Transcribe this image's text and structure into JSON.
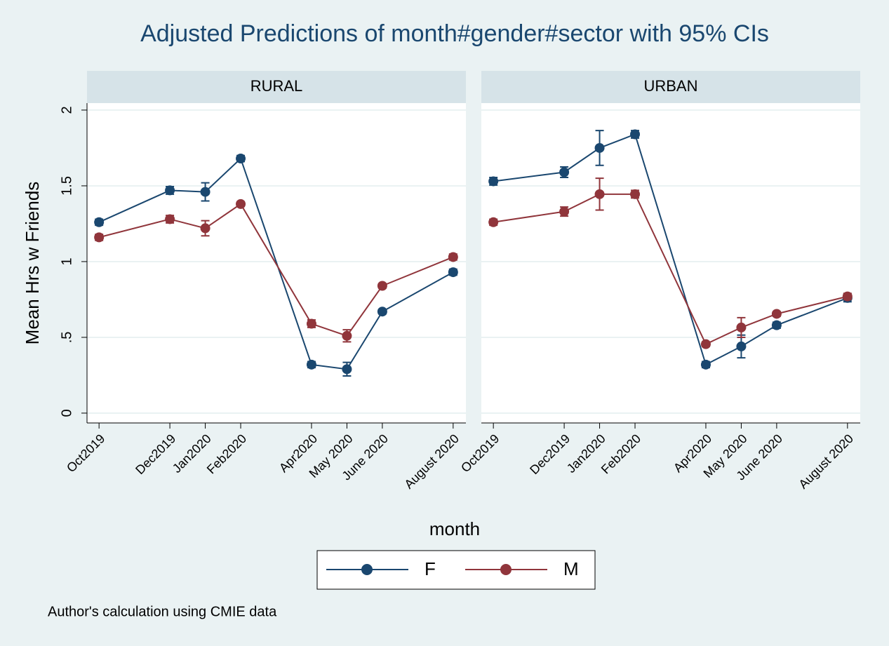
{
  "chart_data": {
    "type": "line",
    "title": "Adjusted Predictions of month#gender#sector with 95% CIs",
    "x_label": "month",
    "y_label": "Mean Hrs w Friends",
    "note": "Author's calculation using CMIE data",
    "x": [
      717,
      719,
      720,
      721,
      723,
      724,
      725,
      727
    ],
    "xlim": [
      716.66,
      727.36
    ],
    "xticks": [
      {
        "value": 717,
        "label": "Oct2019"
      },
      {
        "value": 719,
        "label": "Dec2019"
      },
      {
        "value": 720,
        "label": "Jan2020"
      },
      {
        "value": 721,
        "label": "Feb2020"
      },
      {
        "value": 723,
        "label": "Apr2020"
      },
      {
        "value": 724,
        "label": "May 2020"
      },
      {
        "value": 725,
        "label": "June 2020"
      },
      {
        "value": 727,
        "label": "August 2020"
      }
    ],
    "ylim": [
      -0.065,
      2.046
    ],
    "yticks": [
      0,
      {
        "value": 0.5,
        "label": ".5"
      },
      1,
      1.5,
      2
    ],
    "grid": true,
    "panels": [
      {
        "title": "RURAL",
        "series": [
          {
            "name": "F",
            "color": "#1a476f",
            "values": [
              1.26,
              1.47,
              1.46,
              1.68,
              0.32,
              0.29,
              0.67,
              0.93
            ],
            "errors": [
              0.02,
              0.025,
              0.06,
              0.02,
              0.02,
              0.045,
              0.015,
              0.02
            ]
          },
          {
            "name": "M",
            "color": "#90353b",
            "values": [
              1.16,
              1.28,
              1.22,
              1.38,
              0.59,
              0.51,
              0.84,
              1.03
            ],
            "errors": [
              0.02,
              0.025,
              0.05,
              0.015,
              0.025,
              0.04,
              0.015,
              0.02
            ]
          }
        ]
      },
      {
        "title": "URBAN",
        "series": [
          {
            "name": "F",
            "color": "#1a476f",
            "values": [
              1.53,
              1.59,
              1.75,
              1.84,
              0.32,
              0.44,
              0.58,
              0.76
            ],
            "errors": [
              0.025,
              0.035,
              0.115,
              0.025,
              0.02,
              0.075,
              0.02,
              0.025
            ]
          },
          {
            "name": "M",
            "color": "#90353b",
            "values": [
              1.26,
              1.33,
              1.445,
              1.445,
              0.455,
              0.565,
              0.655,
              0.77
            ],
            "errors": [
              0.02,
              0.03,
              0.105,
              0.025,
              0.015,
              0.065,
              0.015,
              0.02
            ]
          }
        ]
      }
    ]
  }
}
